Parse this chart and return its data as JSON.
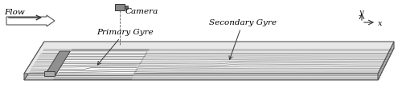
{
  "fig_width": 5.0,
  "fig_height": 1.1,
  "dpi": 100,
  "bg_color": "#f0f0f0",
  "flow_label": "Flow",
  "camera_label": "Camera",
  "primary_gyre_label": "Primary Gyre",
  "secondary_gyre_label": "Secondary Gyre",
  "x_axis_label": "x",
  "y_axis_label": "y",
  "label_fontsize": 7.5,
  "label_style": "italic",
  "box_color": "#c8c8c8",
  "box_edge_color": "#555555",
  "groyne_color": "#888888",
  "streamline_color": "#555555",
  "highlight_color": "#ffffff",
  "arrow_color": "#333333"
}
